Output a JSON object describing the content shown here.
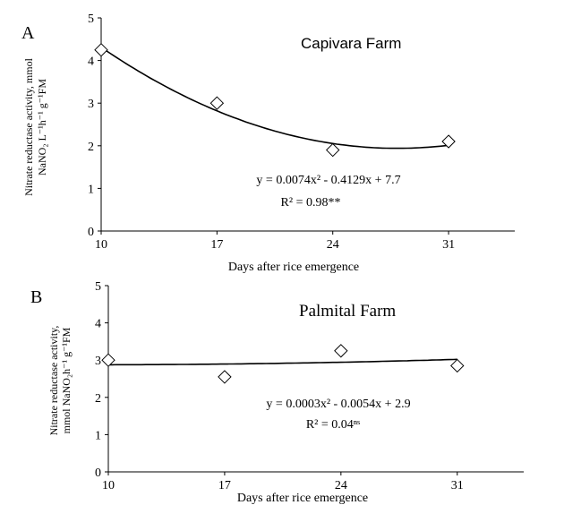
{
  "chart_data": [
    {
      "type": "scatter",
      "panel_letter": "A",
      "title": "Capivara Farm",
      "xlabel": "Days after rice emergence",
      "ylabel_line1": "Nitrate reductase activity, mmol",
      "ylabel_line2": "NaNO₂ L⁻¹h⁻¹ g⁻¹FM",
      "x_ticks": [
        10,
        17,
        24,
        31
      ],
      "y_ticks": [
        0,
        1,
        2,
        3,
        4,
        5
      ],
      "xlim": [
        10,
        35
      ],
      "ylim": [
        0,
        5
      ],
      "series": [
        {
          "x": [
            10,
            17,
            24,
            31
          ],
          "y": [
            4.25,
            3.0,
            1.9,
            2.1
          ]
        }
      ],
      "trendline": {
        "a": 0.0074,
        "b": -0.4129,
        "c": 7.7
      },
      "equation": "y = 0.0074x² - 0.4129x + 7.7",
      "r2": "R² = 0.98**",
      "grid": false,
      "marker": "diamond-open"
    },
    {
      "type": "scatter",
      "panel_letter": "B",
      "title": "Palmital  Farm",
      "xlabel": "Days after rice emergence",
      "ylabel_line1": "Nitrate reductase activity,",
      "ylabel_line2": "mmol NaNO₂h⁻¹ g⁻¹FM",
      "x_ticks": [
        10,
        17,
        24,
        31
      ],
      "y_ticks": [
        0,
        1,
        2,
        3,
        4,
        5
      ],
      "xlim": [
        10,
        35
      ],
      "ylim": [
        0,
        5
      ],
      "series": [
        {
          "x": [
            10,
            17,
            24,
            31
          ],
          "y": [
            3.0,
            2.55,
            3.25,
            2.85
          ]
        }
      ],
      "trendline": {
        "a": 0.0003,
        "b": -0.0054,
        "c": 2.9
      },
      "equation": "y = 0.0003x² - 0.0054x + 2.9",
      "r2": "R² = 0.04ⁿˢ",
      "grid": false,
      "marker": "diamond-open"
    }
  ]
}
